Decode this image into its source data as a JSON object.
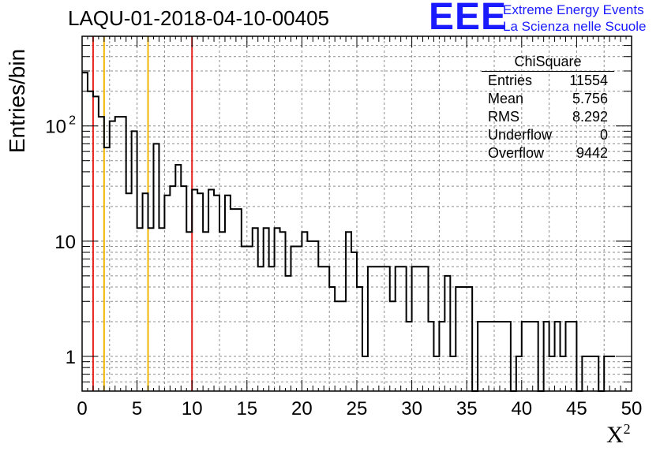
{
  "run_title": "LAQU-01-2018-04-10-00405",
  "logo": {
    "mark": "EEE",
    "line1": "Extreme Energy Events",
    "line2": "La Scienza nelle Scuole",
    "color": "#1a1aff"
  },
  "stats_box": {
    "title": "ChiSquare",
    "rows": [
      {
        "label": "Entries",
        "value": "11554"
      },
      {
        "label": "Mean",
        "value": "5.756"
      },
      {
        "label": "RMS",
        "value": "8.292"
      },
      {
        "label": "Underflow",
        "value": "0"
      },
      {
        "label": "Overflow",
        "value": "9442"
      }
    ]
  },
  "chart_data": {
    "type": "histogram",
    "xlabel": "X",
    "xlabel_sup": "2",
    "ylabel": "Entries/bin",
    "xlim": [
      0,
      50
    ],
    "ylim": [
      0.5,
      600
    ],
    "yscale": "log",
    "bin_width": 0.5,
    "x_ticks": [
      "0",
      "5",
      "10",
      "15",
      "20",
      "25",
      "30",
      "35",
      "40",
      "45",
      "50"
    ],
    "y_ticks": [
      {
        "value": 1,
        "label": "1"
      },
      {
        "value": 10,
        "label": "10"
      },
      {
        "value": 100,
        "label": "10",
        "sup": "2"
      }
    ],
    "grid": true,
    "values": [
      290,
      200,
      180,
      120,
      65,
      110,
      120,
      120,
      26,
      90,
      13,
      26,
      13,
      70,
      13,
      25,
      30,
      46,
      30,
      12,
      28,
      26,
      12,
      28,
      25,
      12,
      25,
      19,
      19,
      9,
      9,
      13,
      6,
      13,
      6,
      13,
      12,
      5,
      9,
      9,
      12,
      10,
      10,
      6,
      6,
      4,
      3,
      3,
      12,
      8,
      4,
      1,
      6,
      6,
      6,
      6,
      3,
      6,
      6,
      2,
      6,
      6,
      6,
      2,
      1,
      2,
      5,
      1,
      4,
      4,
      4,
      0,
      2,
      2,
      2,
      2,
      2,
      2,
      0,
      1,
      2,
      2,
      2,
      0
    ],
    "bin_edges_note": "",
    "values_all": [
      290,
      200,
      180,
      120,
      65,
      110,
      120,
      120,
      26,
      90,
      13,
      26,
      13,
      70,
      13,
      25,
      30,
      46,
      30,
      12,
      28,
      26,
      12,
      28,
      25,
      12,
      25,
      19,
      19,
      9,
      9,
      13,
      6,
      13,
      6,
      13,
      12,
      5,
      9,
      9,
      12,
      10,
      10,
      6,
      6,
      4,
      3,
      3,
      12,
      8,
      4,
      1,
      6,
      6,
      6,
      6,
      3,
      6,
      6,
      2,
      6,
      6,
      6,
      2,
      1,
      2,
      5,
      1,
      4,
      4,
      4,
      0,
      2,
      2,
      2,
      2,
      2,
      2,
      0,
      1,
      2,
      2,
      2,
      0
    ],
    "full_series": [
      290,
      200,
      180,
      120,
      65,
      110,
      120,
      120,
      26,
      90,
      13,
      26,
      13,
      70,
      13,
      25,
      30,
      46,
      30,
      12,
      28,
      26,
      12,
      28,
      25,
      12,
      25,
      19,
      19,
      9,
      9,
      13,
      6,
      13,
      6,
      13,
      12,
      5,
      9,
      9,
      12,
      10,
      10,
      6,
      6,
      4,
      3,
      3,
      12,
      8,
      4,
      1,
      6,
      6,
      6,
      6,
      3,
      6,
      6,
      2,
      6,
      6,
      6,
      2,
      1,
      2,
      5,
      1,
      4,
      4,
      4,
      0,
      2,
      2,
      2,
      2,
      2,
      2,
      0,
      1,
      2,
      2,
      2,
      0
    ],
    "vertical_lines": [
      {
        "x": 1,
        "color": "#e8211b"
      },
      {
        "x": 2,
        "color": "#f2b705"
      },
      {
        "x": 6,
        "color": "#f2b705"
      },
      {
        "x": 10,
        "color": "#e8211b"
      }
    ],
    "colors": {
      "line": "#000000",
      "grid": "#8c8c8c"
    }
  }
}
